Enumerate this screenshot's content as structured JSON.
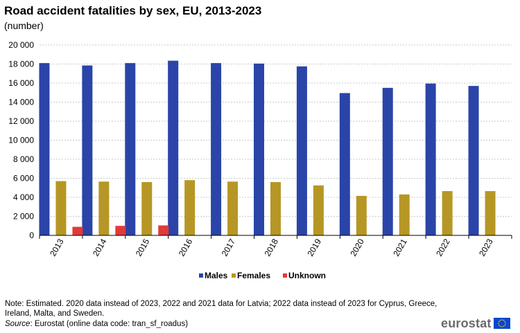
{
  "title": "Road accident fatalities by sex, EU, 2013-2023",
  "subtitle": "(number)",
  "note": "Note: Estimated. 2020 data instead of 2023, 2022 and 2021 data for Latvia; 2022 data instead of 2023 for Cyprus, Greece, Ireland,  Malta, and Sweden.",
  "source": {
    "label": "Source",
    "text": ": Eurostat (online data code: tran_sf_roadus)"
  },
  "logo": {
    "text": "eurostat",
    "flag_color": "#0e47cb",
    "star_color": "#ffd617"
  },
  "chart_data": {
    "type": "bar",
    "categories": [
      "2013",
      "2014",
      "2015",
      "2016",
      "2017",
      "2018",
      "2019",
      "2020",
      "2021",
      "2022",
      "2023"
    ],
    "series": [
      {
        "name": "Males",
        "color": "#2a44a8",
        "values": [
          18100,
          17850,
          18100,
          18350,
          18100,
          18050,
          17750,
          14950,
          15500,
          15950,
          15700
        ]
      },
      {
        "name": "Females",
        "color": "#b69725",
        "values": [
          5700,
          5650,
          5600,
          5800,
          5650,
          5600,
          5250,
          4150,
          4300,
          4650,
          4650
        ]
      },
      {
        "name": "Unknown",
        "color": "#e03a3a",
        "values": [
          900,
          1000,
          1050,
          null,
          null,
          null,
          null,
          null,
          null,
          null,
          null
        ]
      }
    ],
    "ylim": [
      0,
      20000
    ],
    "yticks": [
      0,
      2000,
      4000,
      6000,
      8000,
      10000,
      12000,
      14000,
      16000,
      18000,
      20000
    ],
    "ytick_labels": [
      "0",
      "2 000",
      "4 000",
      "6 000",
      "8 000",
      "10 000",
      "12 000",
      "14 000",
      "16 000",
      "18 000",
      "20 000"
    ],
    "xlabel": "",
    "ylabel": "",
    "grid": "horizontal dashed",
    "legend_position": "bottom-center"
  }
}
